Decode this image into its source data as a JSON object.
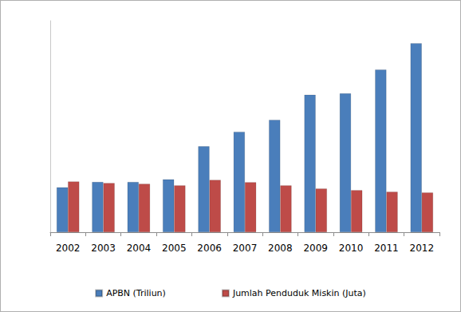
{
  "chart_data": {
    "type": "bar",
    "categories": [
      "2002",
      "2003",
      "2004",
      "2005",
      "2006",
      "2007",
      "2008",
      "2009",
      "2010",
      "2011",
      "2012"
    ],
    "series": [
      {
        "name": "APBN (Triliun)",
        "color": "#4a7ebb",
        "values": [
          34,
          38,
          38,
          40,
          65,
          76,
          85,
          104,
          105,
          123,
          143
        ]
      },
      {
        "name": "Jumlah Penduduk Miskin (Juta)",
        "color": "#be4b48",
        "values": [
          38.4,
          37.2,
          36.6,
          35.4,
          39.6,
          37.8,
          35.4,
          33,
          31.8,
          30.6,
          30
        ]
      }
    ],
    "ylim": [
      0,
      160
    ],
    "tick_labels": "x",
    "grid": false,
    "legend": "bottom"
  }
}
